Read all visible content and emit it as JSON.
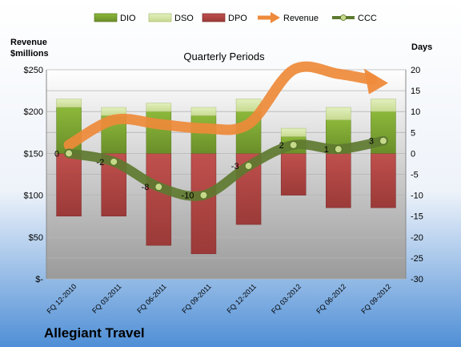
{
  "chart_data": {
    "type": "bar",
    "title": "Quarterly Periods",
    "company": "Allegiant Travel",
    "left_axis_label": [
      "Revenue",
      "$millions"
    ],
    "right_axis_label": "Days",
    "categories": [
      "FQ 12-2010",
      "FQ 03-2011",
      "FQ 06-2011",
      "FQ 09-2011",
      "FQ 12-2011",
      "FQ 03-2012",
      "FQ 06-2012",
      "FQ 09-2012"
    ],
    "left_ticks": [
      "$250",
      "$200",
      "$150",
      "$100",
      "$50",
      "$-"
    ],
    "right_ticks": [
      "20",
      "15",
      "10",
      "5",
      "0",
      "-5",
      "-10",
      "-15",
      "-20",
      "-25",
      "-30"
    ],
    "right_ylim": [
      -30,
      20
    ],
    "left_ylim": [
      0,
      250
    ],
    "legend": [
      "DIO",
      "DSO",
      "DPO",
      "Revenue",
      "CCC"
    ],
    "series": [
      {
        "name": "DIO",
        "values": [
          11,
          9,
          10,
          9,
          10,
          4,
          8,
          10
        ]
      },
      {
        "name": "DSO",
        "values": [
          2,
          2,
          2,
          2,
          3,
          2,
          3,
          3
        ]
      },
      {
        "name": "DPO",
        "values": [
          -15,
          -15,
          -22,
          -24,
          -17,
          -10,
          -13,
          -13
        ]
      },
      {
        "name": "Revenue",
        "values": [
          160,
          190,
          185,
          180,
          185,
          250,
          245,
          235
        ]
      },
      {
        "name": "CCC",
        "values": [
          0,
          -2,
          -8,
          -10,
          -3,
          2,
          1,
          3
        ]
      }
    ],
    "ccc_labels": [
      "0",
      "-2",
      "-8",
      "-10",
      "-3",
      "2",
      "1",
      "3"
    ],
    "colors": {
      "dio": "#7fa832",
      "dso": "#d2e4a2",
      "dpo": "#b44a4a",
      "revenue": "#ee8a3a",
      "ccc": "#5e7a30",
      "bg_top": "#ffffff",
      "bg_bottom": "#4f8fd6"
    }
  }
}
